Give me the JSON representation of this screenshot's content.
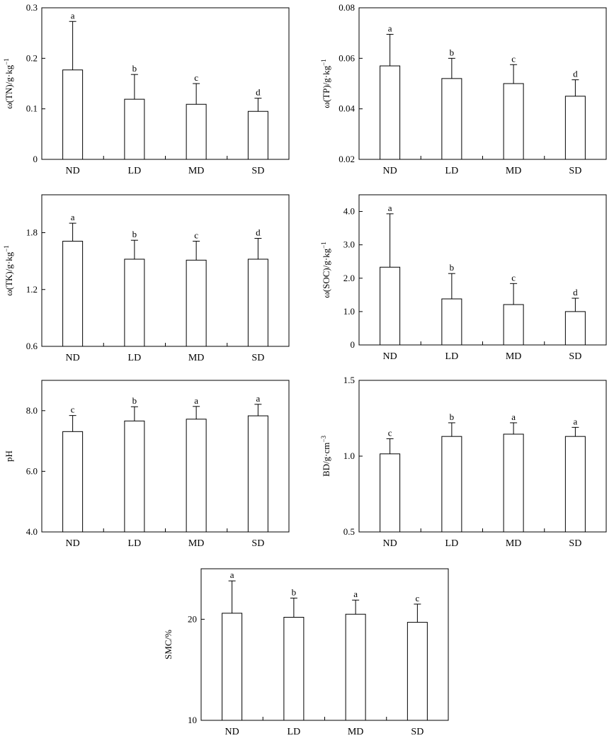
{
  "figure": {
    "categories": [
      "ND",
      "LD",
      "MD",
      "SD"
    ]
  },
  "chart_data": [
    {
      "type": "bar",
      "id": "tn",
      "ylabel": "ω(TN)/g·kg−1",
      "ylabel_parts": {
        "prefix": "ω(TN)/g·kg",
        "sup": "−1"
      },
      "categories": [
        "ND",
        "LD",
        "MD",
        "SD"
      ],
      "values": [
        0.177,
        0.119,
        0.109,
        0.095
      ],
      "errors": [
        0.096,
        0.049,
        0.041,
        0.026
      ],
      "significance": [
        "a",
        "b",
        "c",
        "d"
      ],
      "ylim": [
        0,
        0.3
      ],
      "yticks": [
        0,
        0.1,
        0.2,
        0.3
      ],
      "ytick_labels": [
        "0",
        "0.1",
        "0.2",
        "0.3"
      ],
      "grid": false
    },
    {
      "type": "bar",
      "id": "tp",
      "ylabel": "ω(TP)/g·kg−1",
      "ylabel_parts": {
        "prefix": "ω(TP)/g·kg",
        "sup": "−1"
      },
      "categories": [
        "ND",
        "LD",
        "MD",
        "SD"
      ],
      "values": [
        0.057,
        0.052,
        0.05,
        0.045
      ],
      "errors": [
        0.0125,
        0.008,
        0.0075,
        0.0065
      ],
      "significance": [
        "a",
        "b",
        "c",
        "d"
      ],
      "ylim": [
        0.02,
        0.08
      ],
      "yticks": [
        0.02,
        0.04,
        0.06,
        0.08
      ],
      "ytick_labels": [
        "0.02",
        "0.04",
        "0.06",
        "0.08"
      ],
      "grid": false
    },
    {
      "type": "bar",
      "id": "tk",
      "ylabel": "ω(TK)/g·kg−1",
      "ylabel_parts": {
        "prefix": "ω(TK)/g·kg",
        "sup": "−1"
      },
      "categories": [
        "ND",
        "LD",
        "MD",
        "SD"
      ],
      "values": [
        1.71,
        1.52,
        1.51,
        1.52
      ],
      "errors": [
        0.19,
        0.2,
        0.2,
        0.22
      ],
      "significance": [
        "a",
        "b",
        "c",
        "d"
      ],
      "ylim": [
        0.6,
        2.2
      ],
      "yticks": [
        0.6,
        1.2,
        1.8
      ],
      "ytick_labels": [
        "0.6",
        "1.2",
        "1.8"
      ],
      "grid": false
    },
    {
      "type": "bar",
      "id": "soc",
      "ylabel": "ω(SOC)/g·kg−1",
      "ylabel_parts": {
        "prefix": "ω(SOC)/g·kg",
        "sup": "−1"
      },
      "categories": [
        "ND",
        "LD",
        "MD",
        "SD"
      ],
      "values": [
        2.33,
        1.38,
        1.21,
        1.0
      ],
      "errors": [
        1.6,
        0.76,
        0.63,
        0.4
      ],
      "significance": [
        "a",
        "b",
        "c",
        "d"
      ],
      "ylim": [
        0,
        4.5
      ],
      "yticks": [
        0,
        1.0,
        2.0,
        3.0,
        4.0
      ],
      "ytick_labels": [
        "0",
        "1.0",
        "2.0",
        "3.0",
        "4.0"
      ],
      "grid": false
    },
    {
      "type": "bar",
      "id": "ph",
      "ylabel": "pH",
      "ylabel_parts": {
        "prefix": "pH",
        "sup": ""
      },
      "categories": [
        "ND",
        "LD",
        "MD",
        "SD"
      ],
      "values": [
        7.31,
        7.66,
        7.72,
        7.83
      ],
      "errors": [
        0.53,
        0.47,
        0.42,
        0.38
      ],
      "significance": [
        "c",
        "b",
        "a",
        "a"
      ],
      "ylim": [
        4.0,
        9.0
      ],
      "yticks": [
        4.0,
        6.0,
        8.0
      ],
      "ytick_labels": [
        "4.0",
        "6.0",
        "8.0"
      ],
      "grid": false
    },
    {
      "type": "bar",
      "id": "bd",
      "ylabel": "BD/g·cm−3",
      "ylabel_parts": {
        "prefix": "BD/g·cm",
        "sup": "−3"
      },
      "categories": [
        "ND",
        "LD",
        "MD",
        "SD"
      ],
      "values": [
        1.015,
        1.13,
        1.145,
        1.13
      ],
      "errors": [
        0.1,
        0.09,
        0.075,
        0.06
      ],
      "significance": [
        "c",
        "b",
        "a",
        "a"
      ],
      "ylim": [
        0.5,
        1.5
      ],
      "yticks": [
        0.5,
        1.0,
        1.5
      ],
      "ytick_labels": [
        "0.5",
        "1.0",
        "1.5"
      ],
      "grid": false
    },
    {
      "type": "bar",
      "id": "smc",
      "ylabel": "SMC/%",
      "ylabel_parts": {
        "prefix": "SMC/%",
        "sup": ""
      },
      "categories": [
        "ND",
        "LD",
        "MD",
        "SD"
      ],
      "values": [
        20.6,
        20.2,
        20.5,
        19.7
      ],
      "errors": [
        3.2,
        1.9,
        1.4,
        1.8
      ],
      "significance": [
        "a",
        "b",
        "a",
        "c"
      ],
      "ylim": [
        10,
        25
      ],
      "yticks": [
        10,
        20
      ],
      "ytick_labels": [
        "10",
        "20"
      ],
      "grid": false
    }
  ]
}
